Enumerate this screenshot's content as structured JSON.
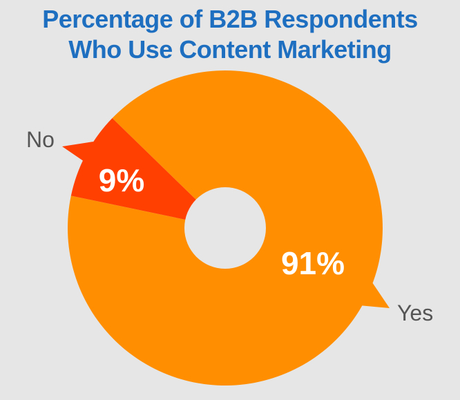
{
  "chart_data": {
    "type": "pie",
    "style": "donut",
    "title_lines": [
      "Percentage of B2B Respondents",
      "Who Use Content Marketing"
    ],
    "slices": [
      {
        "label": "Yes",
        "value": 91,
        "display": "91%",
        "color": "#ff8f00"
      },
      {
        "label": "No",
        "value": 9,
        "display": "9%",
        "color": "#ff4000"
      }
    ],
    "center_hole_color": "#e6e6e6",
    "background_color": "#e6e6e6"
  }
}
